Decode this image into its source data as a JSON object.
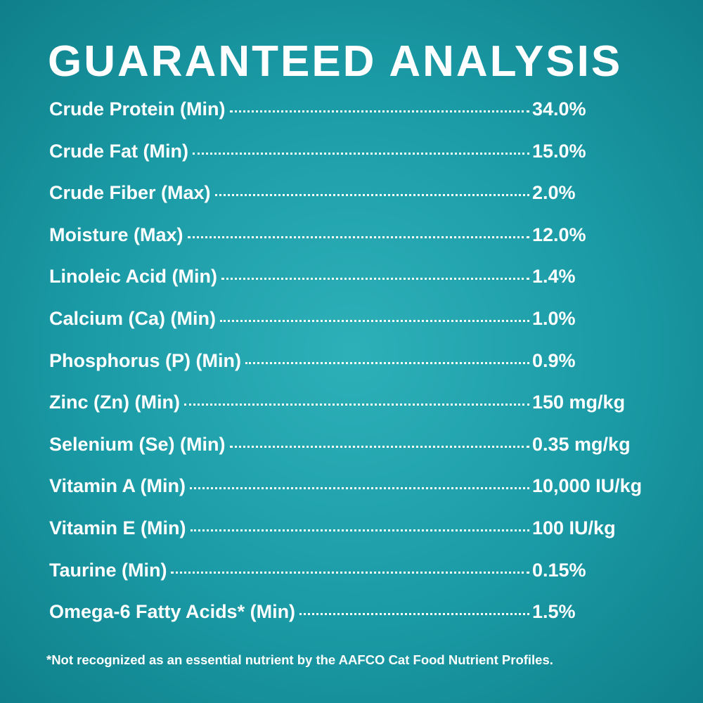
{
  "header": {
    "title": "GUARANTEED ANALYSIS"
  },
  "table": {
    "rows": [
      [
        "Crude Protein (Min)",
        "34.0%"
      ],
      [
        "Crude Fat (Min)",
        "15.0%"
      ],
      [
        "Crude Fiber (Max)",
        "2.0%"
      ],
      [
        "Moisture (Max)",
        "12.0%"
      ],
      [
        "Linoleic Acid (Min)",
        "1.4%"
      ],
      [
        "Calcium (Ca) (Min)",
        "1.0%"
      ],
      [
        "Phosphorus (P) (Min)",
        "0.9%"
      ],
      [
        "Zinc (Zn) (Min)",
        "150 mg/kg"
      ],
      [
        "Selenium (Se) (Min)",
        "0.35 mg/kg"
      ],
      [
        "Vitamin A (Min)",
        "10,000 IU/kg"
      ],
      [
        "Vitamin E (Min)",
        "100 IU/kg"
      ],
      [
        "Taurine (Min)",
        "0.15%"
      ],
      [
        "Omega-6 Fatty Acids* (Min)",
        "1.5%"
      ]
    ]
  },
  "footnote": "*Not recognized as an essential nutrient by the AAFCO Cat Food Nutrient Profiles."
}
